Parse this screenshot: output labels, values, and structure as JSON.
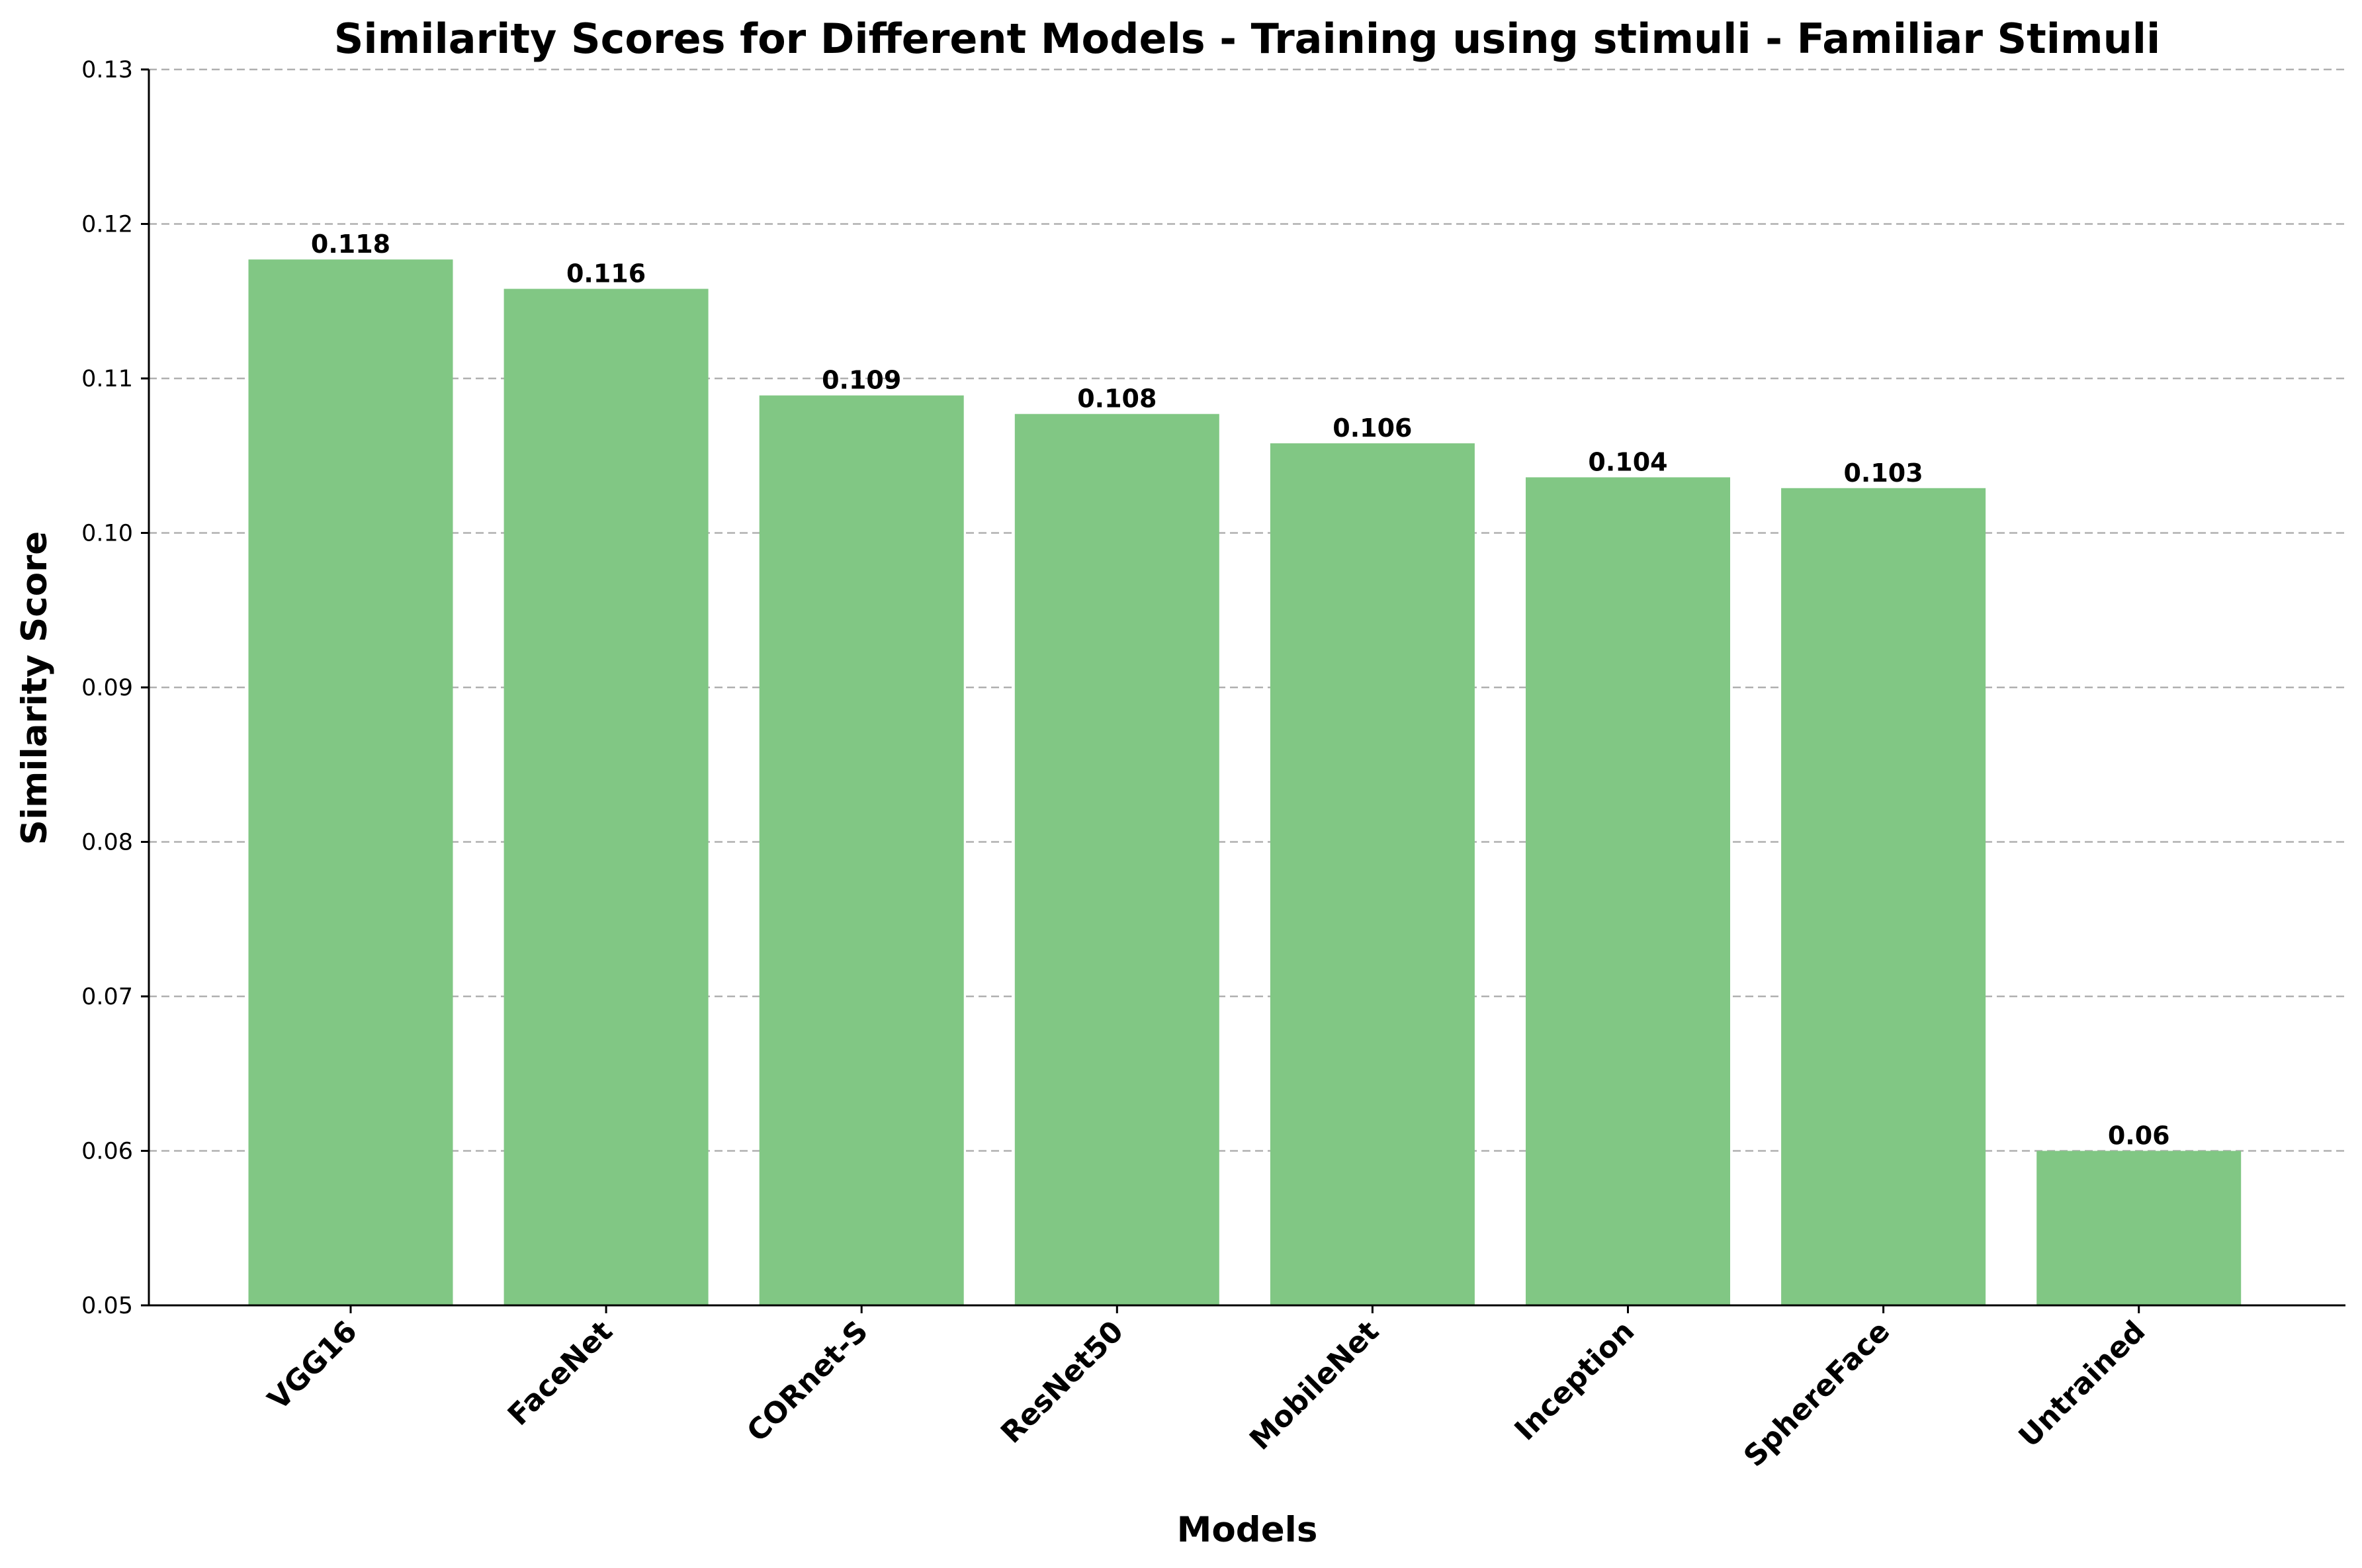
{
  "chart_data": {
    "type": "bar",
    "title": "Similarity Scores for Different Models - Training using stimuli - Familiar Stimuli",
    "xlabel": "Models",
    "ylabel": "Similarity Score",
    "categories": [
      "VGG16",
      "FaceNet",
      "CORnet-S",
      "ResNet50",
      "MobileNet",
      "Inception",
      "SphereFace",
      "Untrained"
    ],
    "values": [
      0.1177,
      0.1158,
      0.1089,
      0.1077,
      0.1058,
      0.1036,
      0.1029,
      0.06
    ],
    "data_labels": [
      "0.118",
      "0.116",
      "0.109",
      "0.108",
      "0.106",
      "0.104",
      "0.103",
      "0.06"
    ],
    "ylim": [
      0.05,
      0.13
    ],
    "yticks": [
      0.05,
      0.06,
      0.07,
      0.08,
      0.09,
      0.1,
      0.11,
      0.12,
      0.13
    ],
    "ytick_labels": [
      "0.05",
      "0.06",
      "0.07",
      "0.08",
      "0.09",
      "0.10",
      "0.11",
      "0.12",
      "0.13"
    ],
    "grid": "y-dashed",
    "bar_color": "#81c784",
    "xtick_rotation": -45
  }
}
